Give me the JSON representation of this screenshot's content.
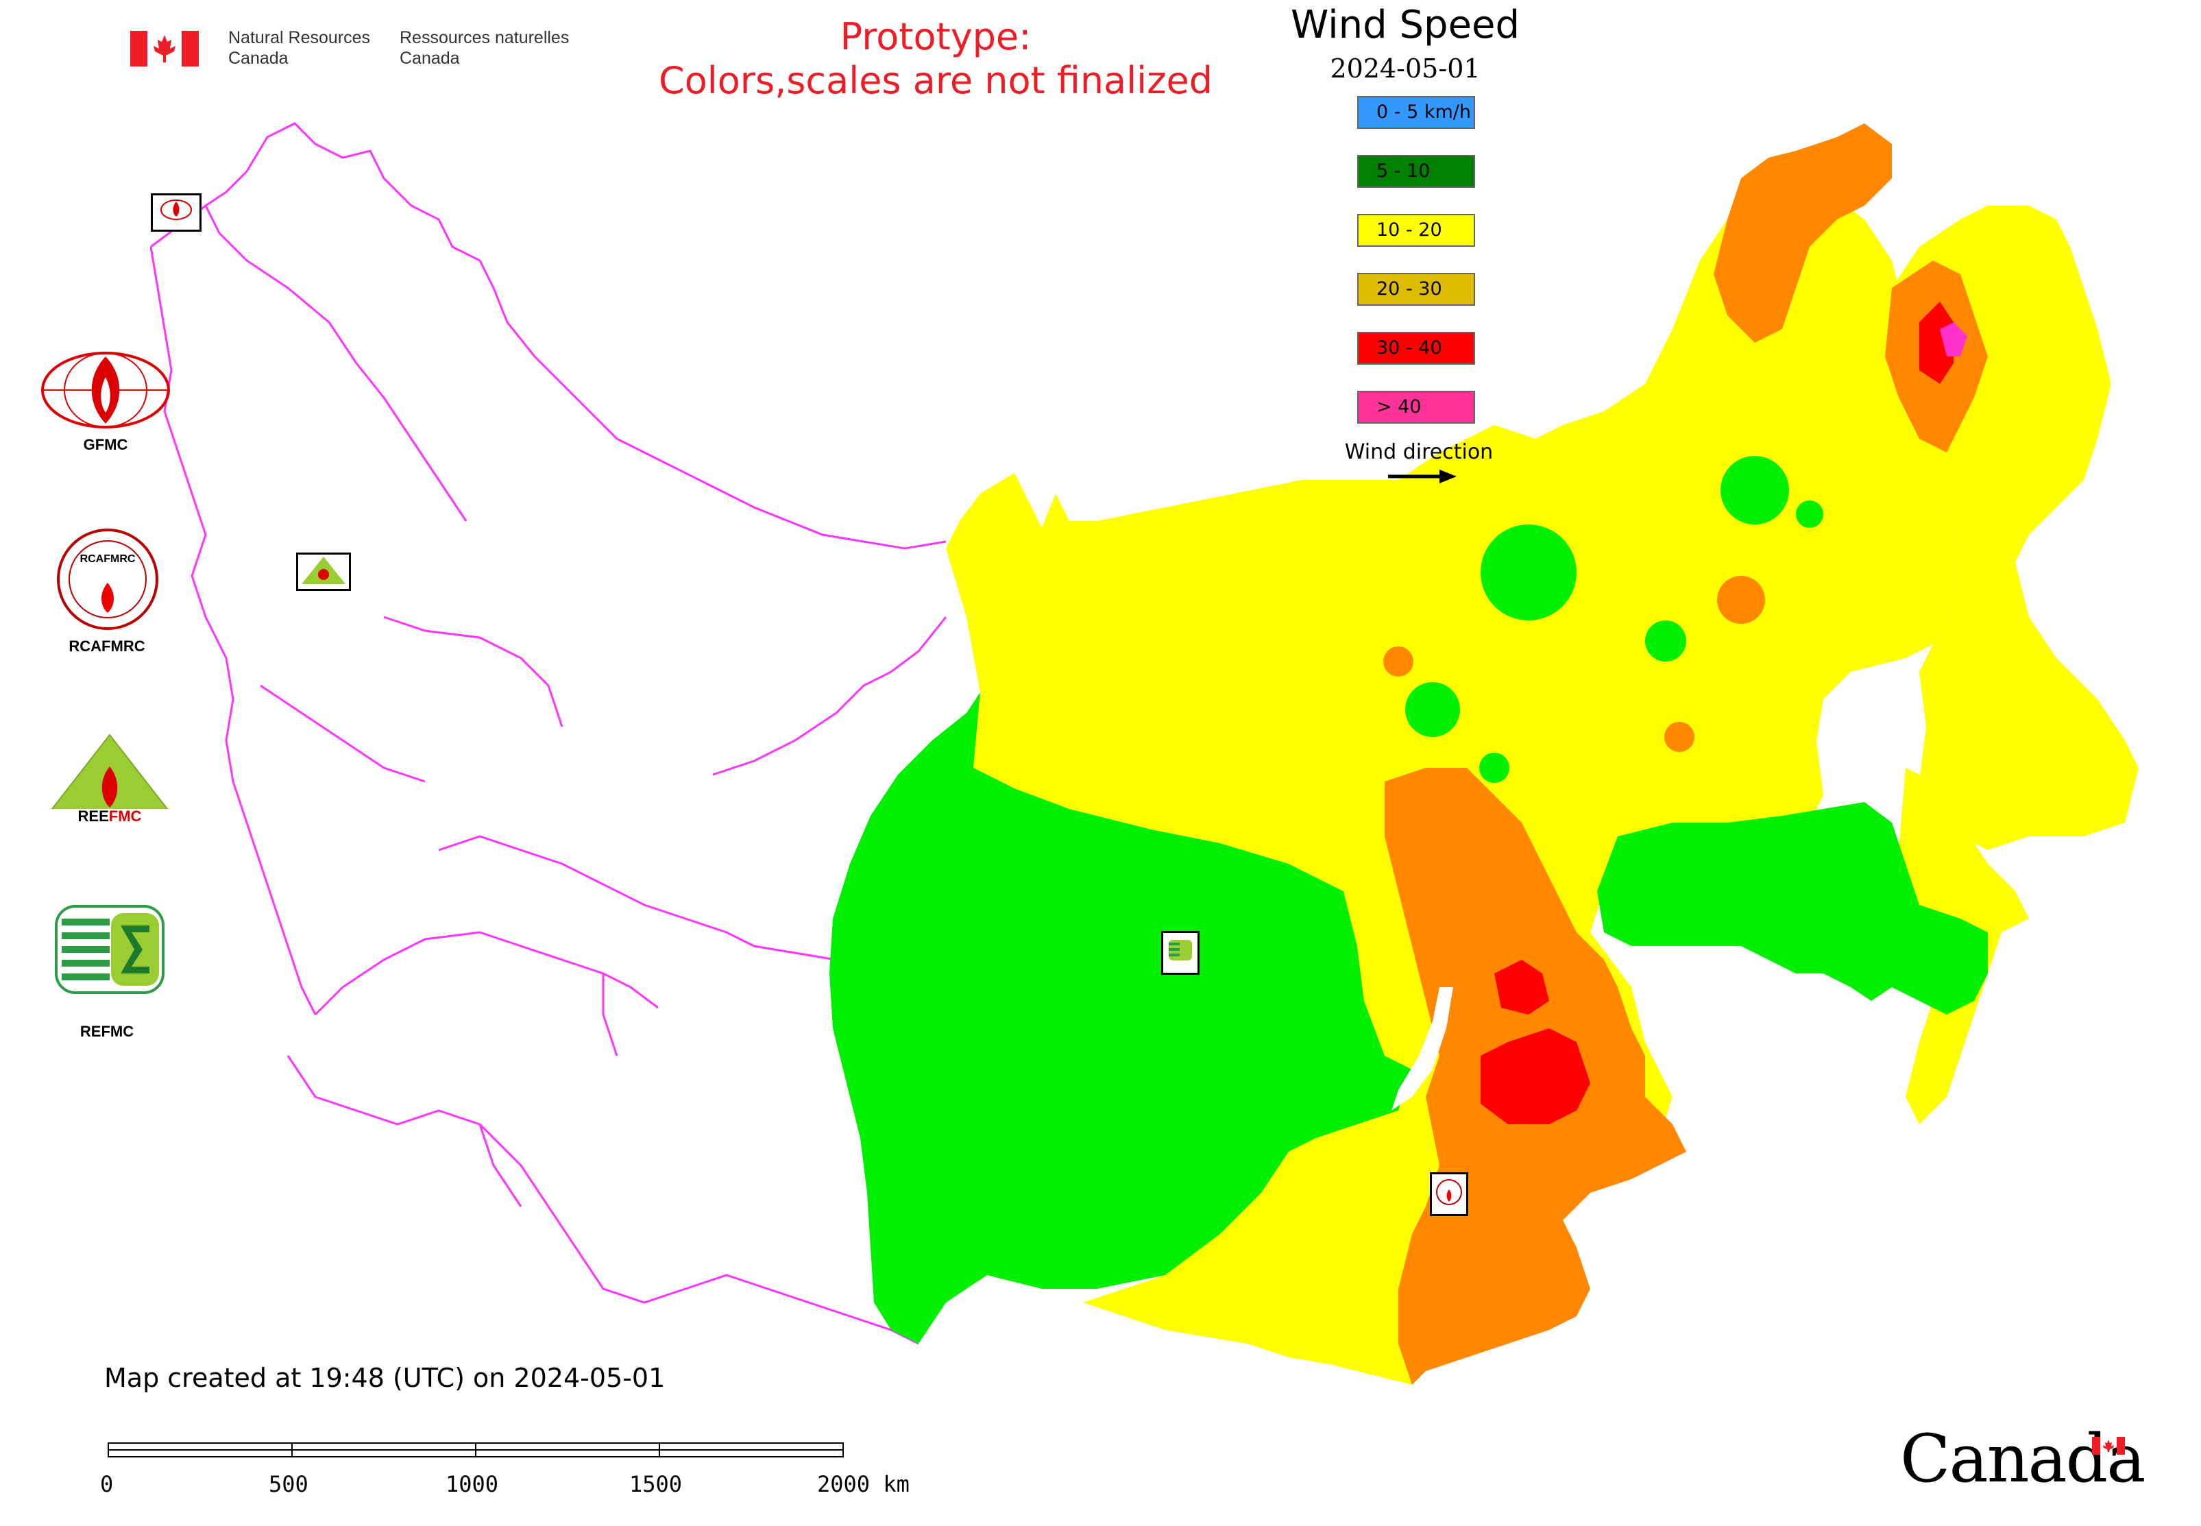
{
  "header": {
    "org_en_line1": "Natural Resources",
    "org_en_line2": "Canada",
    "org_fr_line1": "Ressources naturelles",
    "org_fr_line2": "Canada",
    "prototype_line1": "Prototype:",
    "prototype_line2": "Colors,scales are not finalized"
  },
  "legend": {
    "title": "Wind Speed",
    "date": "2024-05-01",
    "items": [
      {
        "label": "0 - 5 km/h",
        "color": "#3399ff"
      },
      {
        "label": "5 - 10",
        "color": "#008000"
      },
      {
        "label": "10 - 20",
        "color": "#ffff00"
      },
      {
        "label": "20 - 30",
        "color": "#ddbb00"
      },
      {
        "label": "30 - 40",
        "color": "#ff0000"
      },
      {
        "label": "> 40",
        "color": "#ff3399"
      }
    ],
    "wind_direction_label": "Wind direction"
  },
  "logos": {
    "gfmc": "GFMC",
    "rcafmrc": "RCAFMRC",
    "reefmc": "REEFMC",
    "refmc": "REFMC"
  },
  "footer": {
    "created": "Map created at 19:48 (UTC) on 2024-05-01"
  },
  "scale_bar": {
    "ticks": [
      "0",
      "500",
      "1000",
      "1500",
      "2000 km"
    ]
  },
  "wordmark": "Canada",
  "colors": {
    "boundary": "#ff33ff",
    "speed_5_10": "#00ee00",
    "speed_10_20": "#ffff00",
    "speed_20_30": "#ff8800",
    "speed_30_40": "#ff0000",
    "speed_over_40": "#ff33cc",
    "title_red": "#ee1c25"
  }
}
